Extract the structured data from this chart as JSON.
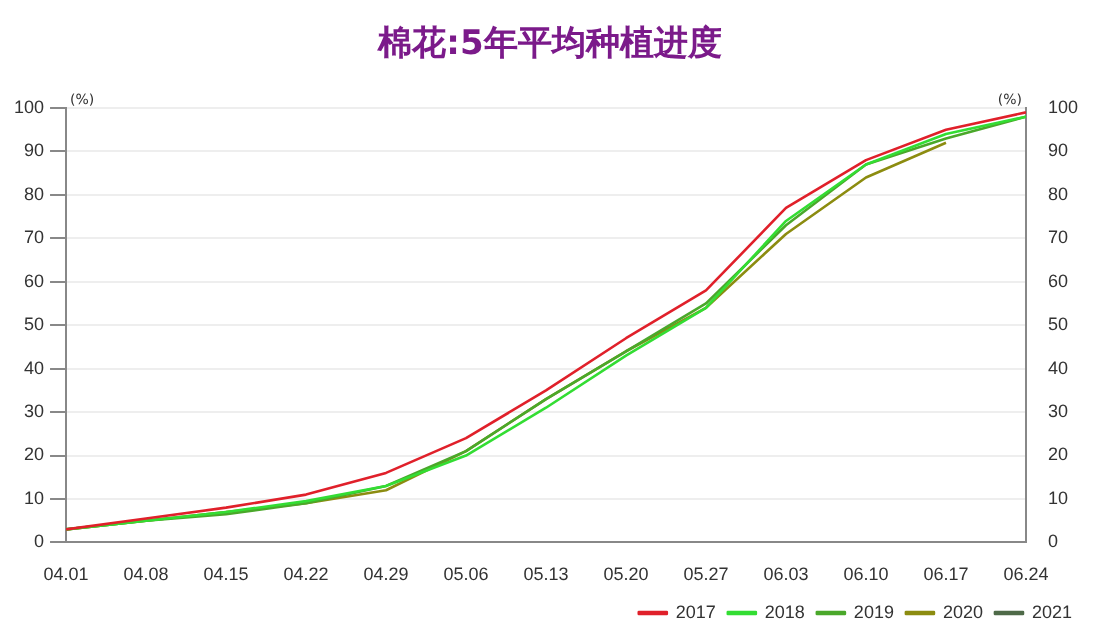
{
  "chart_data": {
    "type": "line",
    "title": "棉花:5年平均种植进度",
    "ylabel": "(%)",
    "y2label": "(%)",
    "x": [
      "--04-01",
      "--04-08",
      "--04-15",
      "--04-22",
      "--04-29",
      "--05-06",
      "--05-13",
      "--05-20",
      "--05-27",
      "--06-03",
      "--06-10",
      "--06-17",
      "--06-24"
    ],
    "xlim": [
      "--04-01",
      "--06-24"
    ],
    "xticks": [
      {
        "value": "--04-01",
        "label": "04.01"
      },
      {
        "value": "--04-08",
        "label": "04.08"
      },
      {
        "value": "--04-15",
        "label": "04.15"
      },
      {
        "value": "--04-22",
        "label": "04.22"
      },
      {
        "value": "--04-29",
        "label": "04.29"
      },
      {
        "value": "--05-06",
        "label": "05.06"
      },
      {
        "value": "--05-13",
        "label": "05.13"
      },
      {
        "value": "--05-20",
        "label": "05.20"
      },
      {
        "value": "--05-27",
        "label": "05.27"
      },
      {
        "value": "--06-03",
        "label": "06.03"
      },
      {
        "value": "--06-10",
        "label": "06.10"
      },
      {
        "value": "--06-17",
        "label": "06.17"
      },
      {
        "value": "--06-24",
        "label": "06.24"
      }
    ],
    "ylim": [
      0,
      100
    ],
    "yticks": [
      0,
      10,
      20,
      30,
      40,
      50,
      60,
      70,
      80,
      90,
      100
    ],
    "y2lim": [
      0,
      100
    ],
    "y2ticks": [
      0,
      10,
      20,
      30,
      40,
      50,
      60,
      70,
      80,
      90,
      100
    ],
    "series": [
      {
        "name": "2017",
        "color": "#e0202a",
        "values": [
          3,
          5.5,
          8,
          11,
          16,
          24,
          35,
          47,
          58,
          77,
          88,
          95,
          99
        ]
      },
      {
        "name": "2018",
        "color": "#33dd33",
        "values": [
          3,
          5,
          7,
          9.5,
          13,
          20,
          31,
          43,
          54,
          74,
          87,
          94,
          98
        ]
      },
      {
        "name": "2019",
        "color": "#4aa82a",
        "values": [
          3,
          5,
          6.5,
          9,
          13,
          21,
          33,
          44,
          55,
          73,
          87,
          93,
          98
        ]
      },
      {
        "name": "2020",
        "color": "#8c8c10",
        "values": [
          3,
          5,
          7,
          9,
          12,
          21,
          33,
          44,
          54,
          71,
          84,
          92,
          null
        ]
      },
      {
        "name": "2021",
        "color": "#4e6a48",
        "values": [
          null,
          null,
          null,
          null,
          null,
          null,
          null,
          null,
          null,
          null,
          null,
          null,
          null
        ]
      }
    ],
    "grid": "y",
    "legend": "bottom",
    "marker": "none",
    "line_style": "solid"
  }
}
